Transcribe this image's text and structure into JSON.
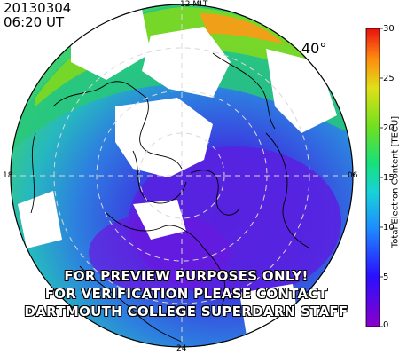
{
  "header": {
    "date": "20130304",
    "time": "06:20 UT"
  },
  "mlt_labels": {
    "top": "12 MLT",
    "left": "18",
    "right": "06",
    "bottom": "24"
  },
  "latitude_label": "40°",
  "colorbar": {
    "title": "Total Electron Content [TECU]",
    "ticks": [
      "30",
      "25",
      "20",
      "15",
      "10",
      "5",
      "0"
    ],
    "range": [
      0,
      30
    ]
  },
  "watermark": {
    "line1": "FOR PREVIEW PURPOSES ONLY!",
    "line2": "FOR VERIFICATION PLEASE CONTACT",
    "line3": "DARTMOUTH COLLEGE SUPERDARN STAFF"
  },
  "colors": {
    "low": "#6a1bd8",
    "mid": "#2b7de0",
    "high": "#d0202a",
    "coast": "#000000",
    "grid": "#c8c8c8"
  }
}
